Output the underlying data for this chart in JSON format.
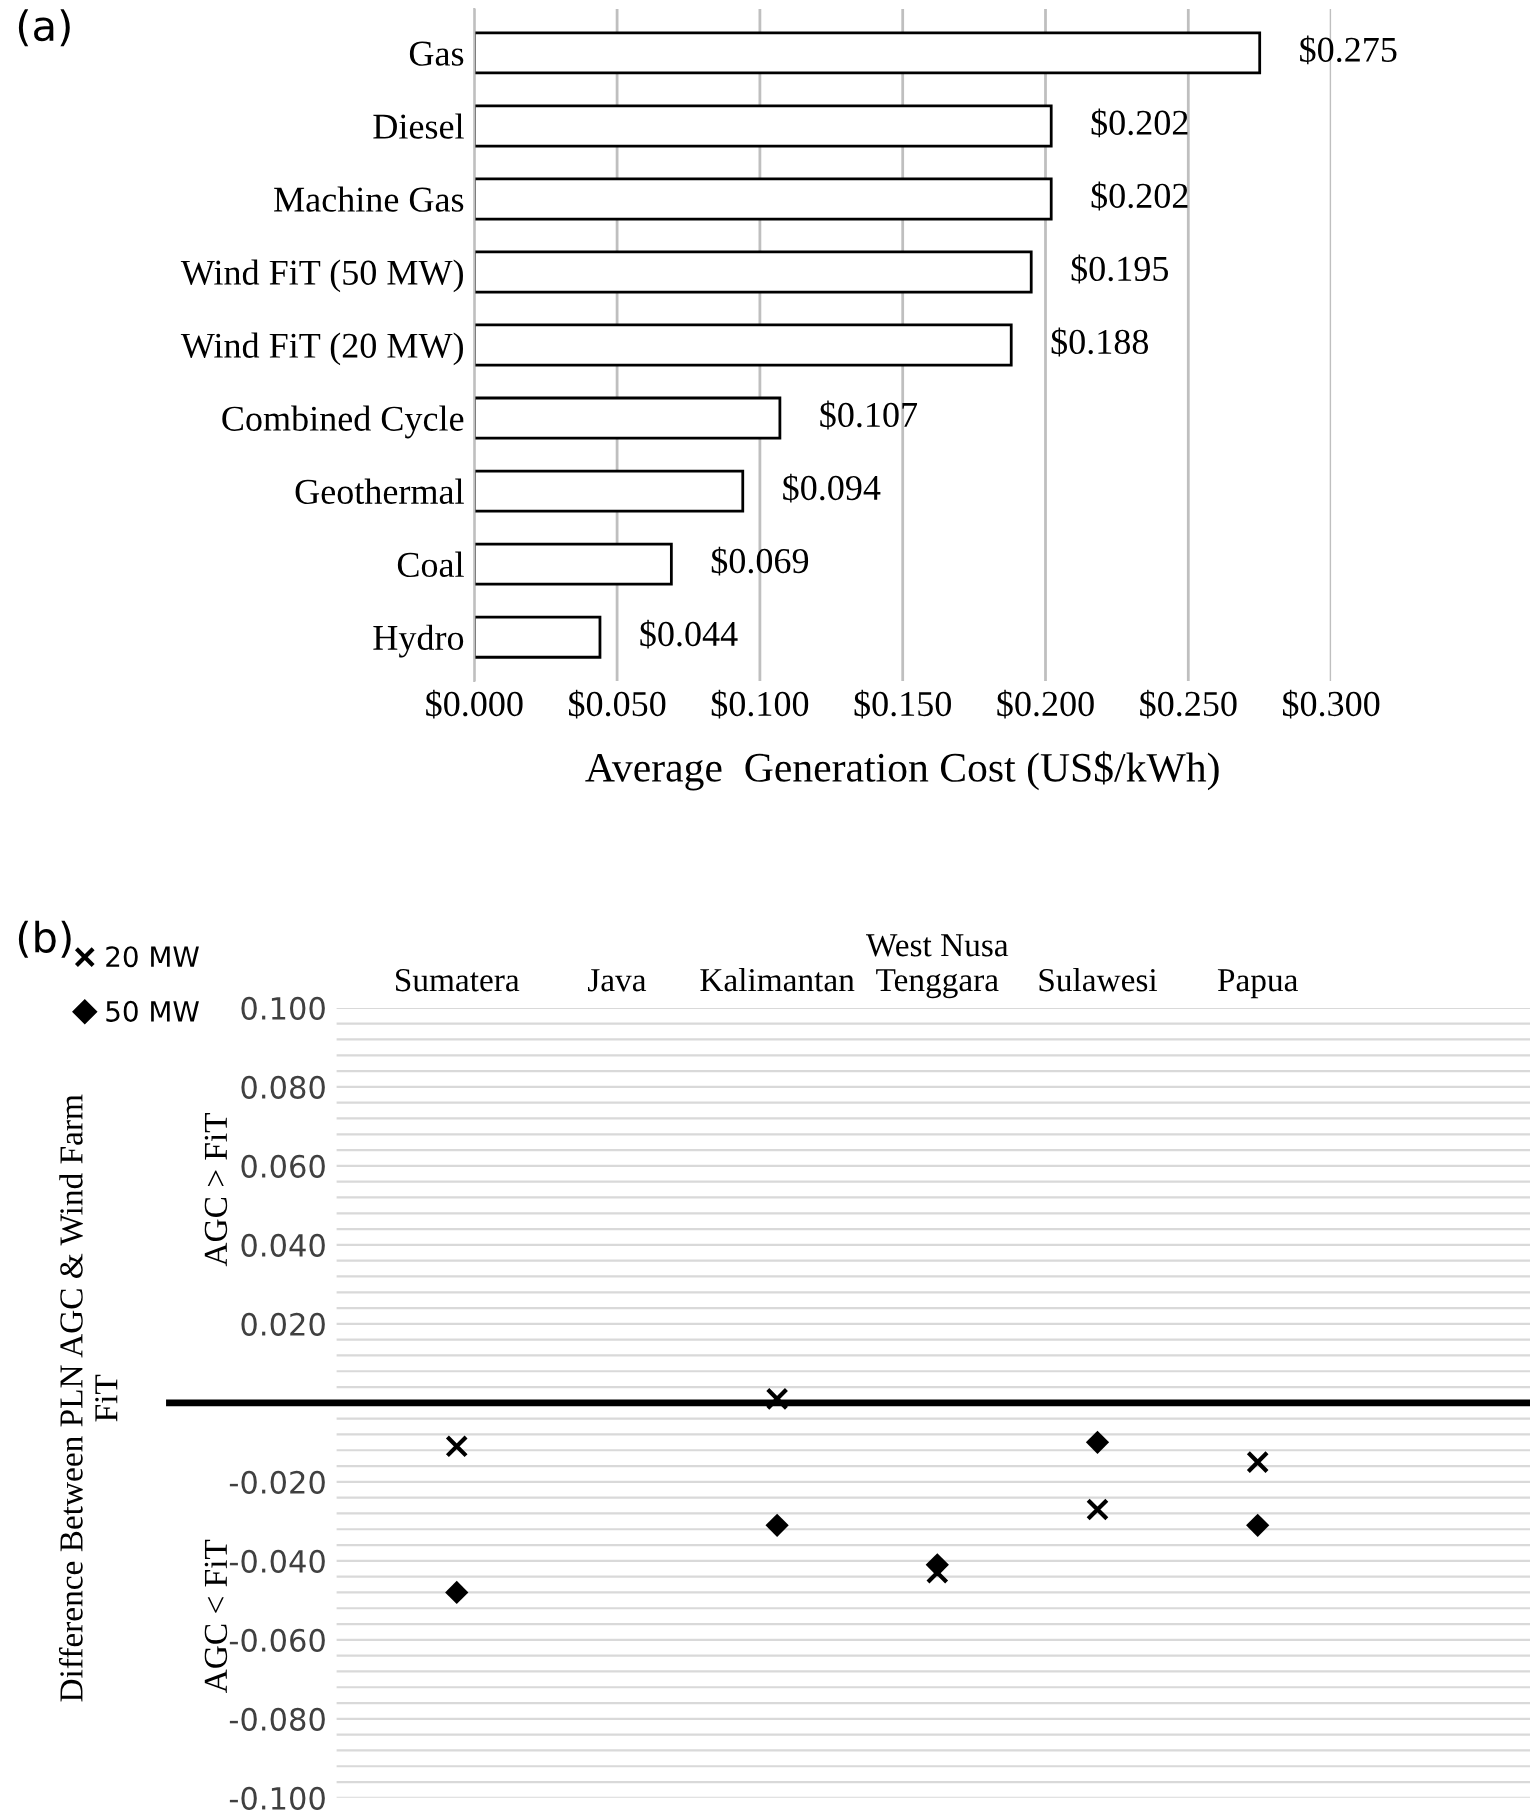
{
  "chart_data": [
    {
      "type": "bar",
      "title": "(a)",
      "orientation": "horizontal",
      "xlabel": "Average  Generation Cost (US$/kWh)",
      "categories": [
        "Gas",
        "Diesel",
        "Machine Gas",
        "Wind FiT (50 MW)",
        "Wind FiT (20 MW)",
        "Combined Cycle",
        "Geothermal",
        "Coal",
        "Hydro"
      ],
      "values": [
        0.275,
        0.202,
        0.202,
        0.195,
        0.188,
        0.107,
        0.094,
        0.069,
        0.044
      ],
      "value_labels": [
        "$0.275",
        "$0.202",
        "$0.202",
        "$0.195",
        "$0.188",
        "$0.107",
        "$0.094",
        "$0.069",
        "$0.044"
      ],
      "color": "#ffffff",
      "xlim": [
        0,
        0.3
      ],
      "xticks": [
        {
          "value": 0,
          "label": "$0.000"
        },
        {
          "value": 0.05,
          "label": "$0.050"
        },
        {
          "value": 0.1,
          "label": "$0.100"
        },
        {
          "value": 0.15,
          "label": "$0.150"
        },
        {
          "value": 0.2,
          "label": "$0.200"
        },
        {
          "value": 0.25,
          "label": "$0.250"
        },
        {
          "value": 0.3,
          "label": "$0.300"
        }
      ],
      "grid": "x"
    },
    {
      "type": "scatter",
      "title": "(b)",
      "ylabel": "Difference Between PLN AGC & Wind Farm\nFiT",
      "categories": [
        "Sumatera",
        "Java",
        "Kalimantan",
        "West Nusa\nTenggara",
        "Sulawesi",
        "Papua"
      ],
      "series": [
        {
          "name": "20 MW",
          "color": "#000000",
          "marker": "cross",
          "values": [
            -0.011,
            null,
            0.001,
            -0.043,
            -0.027,
            -0.015
          ]
        },
        {
          "name": "50 MW",
          "color": "#000000",
          "marker": "diamond",
          "values": [
            -0.048,
            null,
            -0.031,
            -0.041,
            -0.01,
            -0.031
          ]
        }
      ],
      "ylim": [
        -0.1,
        0.1
      ],
      "yticks": [
        {
          "value": -0.1,
          "label": "-0.100"
        },
        {
          "value": -0.096,
          "label": null
        },
        {
          "value": -0.092,
          "label": null
        },
        {
          "value": -0.088,
          "label": null
        },
        {
          "value": -0.084,
          "label": null
        },
        {
          "value": -0.08,
          "label": "-0.080"
        },
        {
          "value": -0.076,
          "label": null
        },
        {
          "value": -0.072,
          "label": null
        },
        {
          "value": -0.068,
          "label": null
        },
        {
          "value": -0.064,
          "label": null
        },
        {
          "value": -0.06,
          "label": "-0.060"
        },
        {
          "value": -0.056,
          "label": null
        },
        {
          "value": -0.052,
          "label": null
        },
        {
          "value": -0.048,
          "label": null
        },
        {
          "value": -0.044,
          "label": null
        },
        {
          "value": -0.04,
          "label": "-0.040"
        },
        {
          "value": -0.036,
          "label": null
        },
        {
          "value": -0.032,
          "label": null
        },
        {
          "value": -0.028,
          "label": null
        },
        {
          "value": -0.024,
          "label": null
        },
        {
          "value": -0.02,
          "label": "-0.020"
        },
        {
          "value": -0.016,
          "label": null
        },
        {
          "value": -0.012,
          "label": null
        },
        {
          "value": -0.008,
          "label": null
        },
        {
          "value": -0.004,
          "label": null
        },
        {
          "value": 0,
          "label": null
        },
        {
          "value": 0.004,
          "label": null
        },
        {
          "value": 0.008,
          "label": null
        },
        {
          "value": 0.012,
          "label": null
        },
        {
          "value": 0.016,
          "label": null
        },
        {
          "value": 0.02,
          "label": "0.020"
        },
        {
          "value": 0.024,
          "label": null
        },
        {
          "value": 0.028,
          "label": null
        },
        {
          "value": 0.032,
          "label": null
        },
        {
          "value": 0.036,
          "label": null
        },
        {
          "value": 0.04,
          "label": "0.040"
        },
        {
          "value": 0.044,
          "label": null
        },
        {
          "value": 0.048,
          "label": null
        },
        {
          "value": 0.052,
          "label": null
        },
        {
          "value": 0.056,
          "label": null
        },
        {
          "value": 0.06,
          "label": "0.060"
        },
        {
          "value": 0.064,
          "label": null
        },
        {
          "value": 0.068,
          "label": null
        },
        {
          "value": 0.072,
          "label": null
        },
        {
          "value": 0.076,
          "label": null
        },
        {
          "value": 0.08,
          "label": "0.080"
        },
        {
          "value": 0.084,
          "label": null
        },
        {
          "value": 0.088,
          "label": null
        },
        {
          "value": 0.092,
          "label": null
        },
        {
          "value": 0.096,
          "label": null
        },
        {
          "value": 0.1,
          "label": "0.100"
        }
      ],
      "ref_lines": [
        {
          "axis": "y",
          "value": 0,
          "label": null,
          "color": "#000000"
        }
      ],
      "annotations": [
        "AGC > FiT",
        "AGC < FiT"
      ],
      "grid": "y",
      "legend": "top left"
    }
  ]
}
